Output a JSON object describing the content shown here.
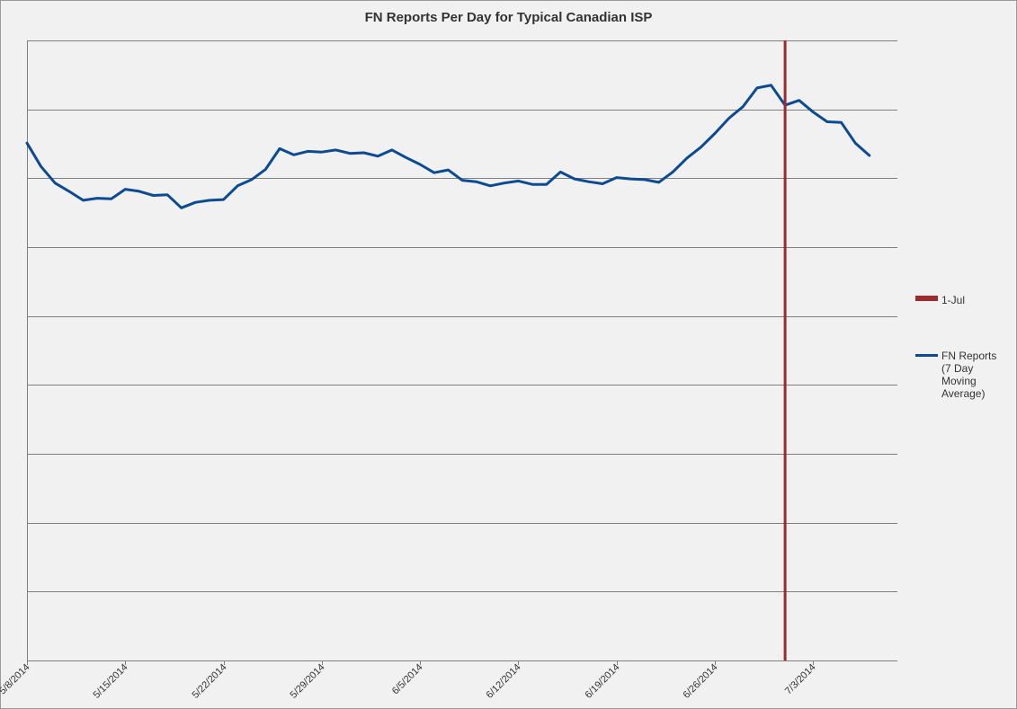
{
  "chart_data": {
    "type": "line",
    "title": "FN Reports Per Day for Typical Canadian ISP",
    "xlabel": "",
    "ylabel": "",
    "x_range": [
      "5/8/2014",
      "7/9/2014"
    ],
    "ylim": [
      0,
      9
    ],
    "y_tick_labels_shown": false,
    "grid": true,
    "legend_position": "right",
    "x_ticks": [
      "5/8/2014",
      "5/15/2014",
      "5/22/2014",
      "5/29/2014",
      "6/5/2014",
      "6/12/2014",
      "6/19/2014",
      "6/26/2014",
      "7/3/2014"
    ],
    "series": [
      {
        "name": "FN Reports (7 Day Moving Average)",
        "color": "#0c4b92",
        "x": [
          "5/8/2014",
          "5/9/2014",
          "5/10/2014",
          "5/11/2014",
          "5/12/2014",
          "5/13/2014",
          "5/14/2014",
          "5/15/2014",
          "5/16/2014",
          "5/17/2014",
          "5/18/2014",
          "5/19/2014",
          "5/20/2014",
          "5/21/2014",
          "5/22/2014",
          "5/23/2014",
          "5/24/2014",
          "5/25/2014",
          "5/26/2014",
          "5/27/2014",
          "5/28/2014",
          "5/29/2014",
          "5/30/2014",
          "5/31/2014",
          "6/1/2014",
          "6/2/2014",
          "6/3/2014",
          "6/4/2014",
          "6/5/2014",
          "6/6/2014",
          "6/7/2014",
          "6/8/2014",
          "6/9/2014",
          "6/10/2014",
          "6/11/2014",
          "6/12/2014",
          "6/13/2014",
          "6/14/2014",
          "6/15/2014",
          "6/16/2014",
          "6/17/2014",
          "6/18/2014",
          "6/19/2014",
          "6/20/2014",
          "6/21/2014",
          "6/22/2014",
          "6/23/2014",
          "6/24/2014",
          "6/25/2014",
          "6/26/2014",
          "6/27/2014",
          "6/28/2014",
          "6/29/2014",
          "6/30/2014",
          "7/1/2014",
          "7/2/2014",
          "7/3/2014",
          "7/4/2014",
          "7/5/2014",
          "7/6/2014",
          "7/7/2014"
        ],
        "y": [
          7.51,
          7.17,
          6.93,
          6.81,
          6.68,
          6.71,
          6.7,
          6.84,
          6.81,
          6.75,
          6.76,
          6.57,
          6.65,
          6.68,
          6.69,
          6.89,
          6.98,
          7.13,
          7.43,
          7.34,
          7.39,
          7.38,
          7.41,
          7.36,
          7.37,
          7.32,
          7.41,
          7.3,
          7.2,
          7.08,
          7.12,
          6.97,
          6.95,
          6.89,
          6.93,
          6.96,
          6.91,
          6.91,
          7.09,
          6.99,
          6.95,
          6.92,
          7.01,
          6.99,
          6.98,
          6.94,
          7.09,
          7.29,
          7.45,
          7.65,
          7.87,
          8.04,
          8.31,
          8.35,
          8.06,
          8.13,
          7.96,
          7.82,
          7.81,
          7.51,
          7.33
        ]
      }
    ],
    "markers": [
      {
        "name": "1-Jul",
        "x": "7/1/2014",
        "color": "#9e2a2b"
      }
    ],
    "gridline_color": "#7f7f7f",
    "axis_color": "#7f7f7f"
  },
  "legend": {
    "jul_label": "1-Jul",
    "fn_label": "FN Reports (7 Day Moving Average)"
  }
}
